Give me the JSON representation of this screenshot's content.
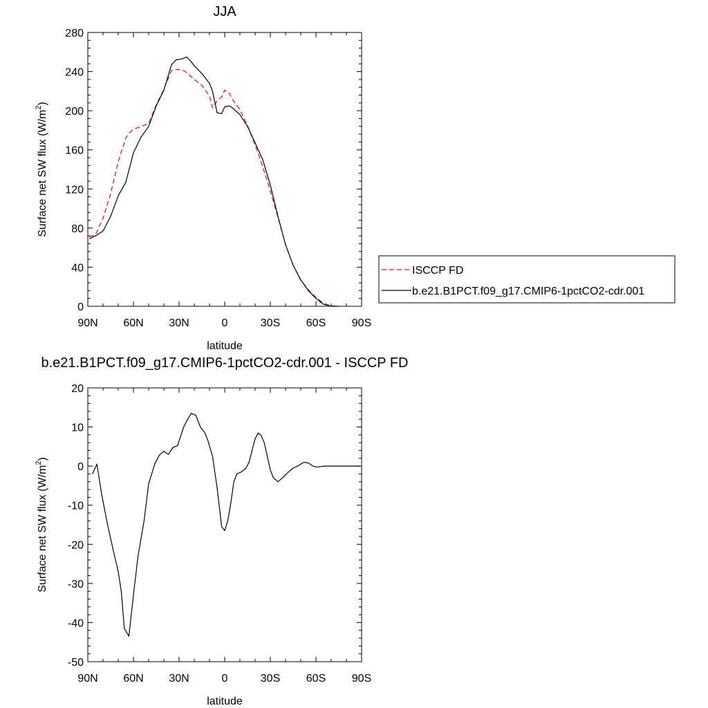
{
  "chart_data": [
    {
      "type": "line",
      "title": "JJA",
      "xlabel": "latitude",
      "ylabel": "Surface net SW flux (W/m",
      "ylabel_sup": "2",
      "ylabel_close": ")",
      "xlim": [
        90,
        -90
      ],
      "ylim": [
        0,
        280
      ],
      "xticks": [
        90,
        60,
        30,
        0,
        -30,
        -60,
        -90
      ],
      "xtick_labels": [
        "90N",
        "60N",
        "30N",
        "0",
        "30S",
        "60S",
        "90S"
      ],
      "yticks": [
        0,
        40,
        80,
        120,
        160,
        200,
        240,
        280
      ],
      "ytick_labels": [
        "0",
        "40",
        "80",
        "120",
        "160",
        "200",
        "240",
        "280"
      ],
      "legend": "right",
      "series": [
        {
          "name": "ISCCP FD",
          "color": "#ff0000",
          "dash": "dashed",
          "x": [
            89,
            85,
            80,
            75,
            70,
            65,
            63,
            60,
            55,
            50,
            45,
            40,
            35,
            32,
            28,
            25,
            20,
            15,
            10,
            8,
            5,
            2,
            0,
            -3,
            -5,
            -10,
            -15,
            -20,
            -25,
            -30,
            -35,
            -40,
            -45,
            -50,
            -55,
            -60,
            -65,
            -70,
            -75
          ],
          "y": [
            71,
            73,
            90,
            115,
            148,
            172,
            177,
            181,
            184,
            187,
            206,
            222,
            241,
            242,
            242,
            239,
            232,
            226,
            215,
            203,
            210,
            214,
            221,
            218,
            212,
            201,
            185,
            165,
            143,
            118,
            91,
            63,
            42,
            27,
            17,
            9,
            3,
            0.5,
            0
          ]
        },
        {
          "name": "b.e21.B1PCT.f09_g17.CMIP6-1pctCO2-cdr.001",
          "color": "#000000",
          "dash": "solid",
          "x": [
            89,
            85,
            80,
            75,
            70,
            65,
            60,
            55,
            50,
            45,
            40,
            35,
            32,
            28,
            25,
            22,
            20,
            15,
            10,
            8,
            5,
            2,
            0,
            -3,
            -5,
            -10,
            -15,
            -20,
            -25,
            -30,
            -35,
            -40,
            -45,
            -50,
            -55,
            -60,
            -65,
            -70,
            -75
          ],
          "y": [
            69,
            72,
            77,
            92,
            113,
            127,
            157,
            173,
            184,
            205,
            221,
            247,
            252,
            253,
            255,
            250,
            246,
            238,
            228,
            220,
            198,
            197,
            204,
            205,
            203,
            196,
            184,
            167,
            150,
            124,
            92,
            63,
            42,
            27,
            16,
            8,
            2,
            0,
            0
          ]
        }
      ]
    },
    {
      "type": "line",
      "title": "b.e21.B1PCT.f09_g17.CMIP6-1pctCO2-cdr.001 - ISCCP FD",
      "xlabel": "latitude",
      "ylabel": "Surface net SW flux (W/m",
      "ylabel_sup": "2",
      "ylabel_close": ")",
      "xlim": [
        90,
        -90
      ],
      "ylim": [
        -50,
        20
      ],
      "xticks": [
        90,
        60,
        30,
        0,
        -30,
        -60,
        -90
      ],
      "xtick_labels": [
        "90N",
        "60N",
        "30N",
        "0",
        "30S",
        "60S",
        "90S"
      ],
      "yticks": [
        -50,
        -40,
        -30,
        -20,
        -10,
        0,
        10,
        20
      ],
      "ytick_labels": [
        "-50",
        "-40",
        "-30",
        "-20",
        "-10",
        "0",
        "10",
        "20"
      ],
      "series": [
        {
          "color": "#000000",
          "dash": "solid",
          "x": [
            87,
            84,
            81,
            77,
            73,
            70,
            68,
            66,
            63,
            60,
            57,
            53,
            50,
            46,
            43,
            40,
            37,
            34,
            31,
            27,
            25,
            22,
            19,
            16,
            13,
            11,
            8,
            5,
            2,
            0,
            -2,
            -4,
            -6,
            -8,
            -11,
            -14,
            -16,
            -18,
            -20,
            -22,
            -24,
            -26,
            -28,
            -30,
            -32,
            -35,
            -38,
            -42,
            -45,
            -48,
            -52,
            -55,
            -58,
            -60,
            -62,
            -65,
            -68,
            -72,
            -75,
            -80,
            -85,
            -89
          ],
          "y": [
            -2,
            0.5,
            -7,
            -15,
            -22,
            -27,
            -32,
            -41.5,
            -43.5,
            -33,
            -23,
            -14,
            -4.5,
            0.5,
            2.8,
            3.8,
            3,
            4.8,
            5.2,
            10,
            11.5,
            13.5,
            13,
            10,
            8.5,
            6.5,
            2.5,
            -5.5,
            -15.5,
            -16.5,
            -14,
            -9.5,
            -4,
            -2,
            -1.5,
            -0.5,
            1,
            4,
            7,
            8.5,
            7.8,
            6,
            2.5,
            -1,
            -3,
            -4,
            -3,
            -1.5,
            -0.5,
            0,
            1,
            0.8,
            0,
            -0.2,
            -0.2,
            0,
            0,
            0,
            0,
            0,
            0,
            0
          ]
        }
      ]
    }
  ]
}
